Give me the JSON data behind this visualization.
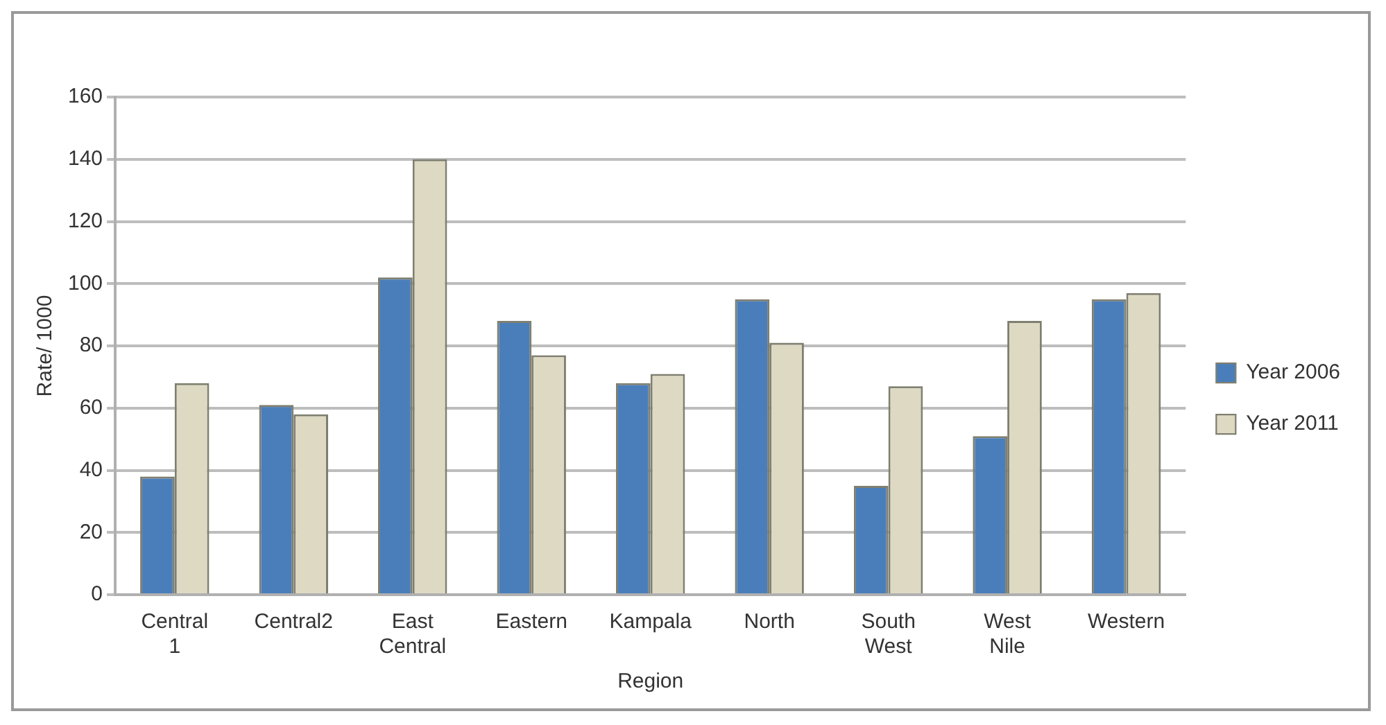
{
  "chart_data": {
    "type": "bar",
    "xlabel": "Region",
    "ylabel": "Rate/ 1000",
    "categories": [
      "Central 1",
      "Central2",
      "East Central",
      "Eastern",
      "Kampala",
      "North",
      "South West",
      "West Nile",
      "Western"
    ],
    "series": [
      {
        "name": "Year 2006",
        "color": "#4a7ebb",
        "values": [
          38,
          61,
          102,
          88,
          68,
          95,
          35,
          51,
          95
        ]
      },
      {
        "name": "Year 2011",
        "color": "#ddd9c3",
        "values": [
          68,
          58,
          140,
          77,
          71,
          81,
          67,
          88,
          97
        ]
      }
    ],
    "ylim": [
      0,
      160
    ],
    "yticks": [
      0,
      20,
      40,
      60,
      80,
      100,
      120,
      140,
      160
    ],
    "grid": "y",
    "legend": "right"
  }
}
